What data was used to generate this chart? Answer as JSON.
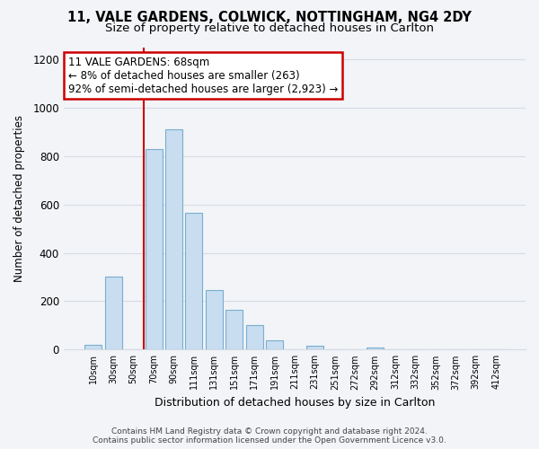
{
  "title_line1": "11, VALE GARDENS, COLWICK, NOTTINGHAM, NG4 2DY",
  "title_line2": "Size of property relative to detached houses in Carlton",
  "xlabel": "Distribution of detached houses by size in Carlton",
  "ylabel": "Number of detached properties",
  "bar_labels": [
    "10sqm",
    "30sqm",
    "50sqm",
    "70sqm",
    "90sqm",
    "111sqm",
    "131sqm",
    "151sqm",
    "171sqm",
    "191sqm",
    "211sqm",
    "231sqm",
    "251sqm",
    "272sqm",
    "292sqm",
    "312sqm",
    "332sqm",
    "352sqm",
    "372sqm",
    "392sqm",
    "412sqm"
  ],
  "bar_values": [
    20,
    300,
    0,
    830,
    910,
    565,
    245,
    163,
    103,
    40,
    0,
    15,
    0,
    0,
    10,
    0,
    0,
    0,
    0,
    0,
    0
  ],
  "bar_color": "#c8ddf0",
  "bar_edge_color": "#7aadcf",
  "vline_color": "#cc0000",
  "annotation_text": "11 VALE GARDENS: 68sqm\n← 8% of detached houses are smaller (263)\n92% of semi-detached houses are larger (2,923) →",
  "annotation_box_color": "#ffffff",
  "annotation_box_edge_color": "#cc0000",
  "ylim": [
    0,
    1250
  ],
  "yticks": [
    0,
    200,
    400,
    600,
    800,
    1000,
    1200
  ],
  "footer_line1": "Contains HM Land Registry data © Crown copyright and database right 2024.",
  "footer_line2": "Contains public sector information licensed under the Open Government Licence v3.0.",
  "bg_color": "#f2f4f7",
  "plot_bg_color": "#f2f4f7",
  "grid_color": "#d5dbe5",
  "title_fontsize": 10.5,
  "subtitle_fontsize": 9.5
}
